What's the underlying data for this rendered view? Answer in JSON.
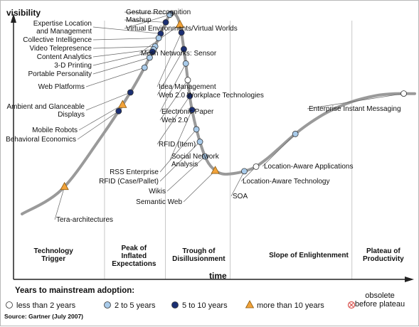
{
  "chart_data": {
    "type": "line",
    "ylabel": "visibility",
    "xlabel": "time",
    "curve": [
      [
        0,
        0
      ],
      [
        10,
        12
      ],
      [
        20,
        38
      ],
      [
        28,
        62
      ],
      [
        33,
        80
      ],
      [
        36,
        93
      ],
      [
        38,
        100
      ],
      [
        40,
        96
      ],
      [
        41.5,
        78
      ],
      [
        43,
        55
      ],
      [
        45,
        38
      ],
      [
        47,
        27
      ],
      [
        49,
        22
      ],
      [
        51,
        20
      ],
      [
        53,
        20
      ],
      [
        56,
        21
      ],
      [
        59,
        23
      ],
      [
        62,
        27
      ],
      [
        65,
        32
      ],
      [
        69,
        39
      ],
      [
        73,
        45
      ],
      [
        78,
        51
      ],
      [
        84,
        56
      ],
      [
        90,
        59
      ],
      [
        95,
        60
      ],
      [
        100,
        60
      ]
    ],
    "phases": [
      {
        "name": "Technology\nTrigger",
        "center": 8
      },
      {
        "name": "Peak of\nInflated\nExpectations",
        "center": 28.5
      },
      {
        "name": "Trough of\nDisillusionment",
        "center": 45
      },
      {
        "name": "Slope of Enlightenment",
        "center": 73
      },
      {
        "name": "Plateau of\nProductivity",
        "center": 92
      }
    ],
    "phase_boundaries": [
      21,
      36.5,
      53,
      84
    ],
    "technologies": [
      {
        "name": "Gesture Recognition",
        "x": 37.8,
        "cat": "5-10"
      },
      {
        "name": "Mashup",
        "x": 36.6,
        "cat": "5-10"
      },
      {
        "name": "Virtual Environments/Virtual Worlds",
        "x": 37.6,
        "cat": "2-5"
      },
      {
        "name": "Expertise Location\nand Management",
        "x": 35.3,
        "cat": "5-10"
      },
      {
        "name": "Collective Intelligence",
        "x": 34.8,
        "cat": "2-5"
      },
      {
        "name": "Video Telepresence",
        "x": 33.9,
        "cat": "2-5"
      },
      {
        "name": "Content Analytics",
        "x": 33.5,
        "cat": "2-5"
      },
      {
        "name": "3-D Printing",
        "x": 33.2,
        "cat": "5-10"
      },
      {
        "name": "Portable Personality",
        "x": 32.5,
        "cat": "2-5"
      },
      {
        "name": "Web Platforms",
        "x": 31.2,
        "cat": "2-5"
      },
      {
        "name": "Ambient and Glanceable\nDisplays",
        "x": 27.6,
        "cat": "5-10"
      },
      {
        "name": "Mobile Robots",
        "x": 25.6,
        "cat": ">10"
      },
      {
        "name": "Behavioral Economics",
        "x": 24.6,
        "cat": "5-10"
      },
      {
        "name": "Tera-architectures",
        "x": 10.8,
        "cat": ">10"
      },
      {
        "name": "Mesh Networks: Sensor",
        "x": 40.2,
        "cat": ">10"
      },
      {
        "name": "Idea Management",
        "x": 40.6,
        "cat": "5-10"
      },
      {
        "name": "Web 2.0 Workplace Technologies",
        "x": 41.2,
        "cat": "5-10"
      },
      {
        "name": "Electronic Paper",
        "x": 41.7,
        "cat": "2-5"
      },
      {
        "name": "Web 2.0",
        "x": 42.2,
        "cat": "<2"
      },
      {
        "name": "RFID (Item)",
        "x": 42.7,
        "cat": "5-10"
      },
      {
        "name": "Social Network\nAnalysis",
        "x": 43.3,
        "cat": "5-10"
      },
      {
        "name": "RSS Enterprise",
        "x": 44.4,
        "cat": "2-5"
      },
      {
        "name": "RFID (Case/Pallet)",
        "x": 45.3,
        "cat": "2-5"
      },
      {
        "name": "Wikis",
        "x": 46.6,
        "cat": "2-5"
      },
      {
        "name": "Semantic Web",
        "x": 49.2,
        "cat": ">10"
      },
      {
        "name": "SOA",
        "x": 56.6,
        "cat": "2-5"
      },
      {
        "name": "Location-Aware Technology",
        "x": 59.6,
        "cat": "<2"
      },
      {
        "name": "Location-Aware Applications",
        "x": 69.6,
        "cat": "2-5"
      },
      {
        "name": "Enterprise Instant Messaging",
        "x": 97.2,
        "cat": "<2"
      }
    ],
    "legend": {
      "title": "Years to mainstream adoption:",
      "items": [
        {
          "key": "<2",
          "label": "less than 2 years",
          "color": "#ffffff"
        },
        {
          "key": "2-5",
          "label": "2 to 5 years",
          "color": "#a9cbea"
        },
        {
          "key": "5-10",
          "label": "5 to 10 years",
          "color": "#1b2f73"
        },
        {
          "key": ">10",
          "label": "more than 10 years",
          "color": "#f2a33a"
        },
        {
          "key": "obsolete",
          "label": "obsolete\nbefore plateau",
          "color": "#d9534f"
        }
      ]
    },
    "source": "Source: Gartner (July 2007)"
  }
}
